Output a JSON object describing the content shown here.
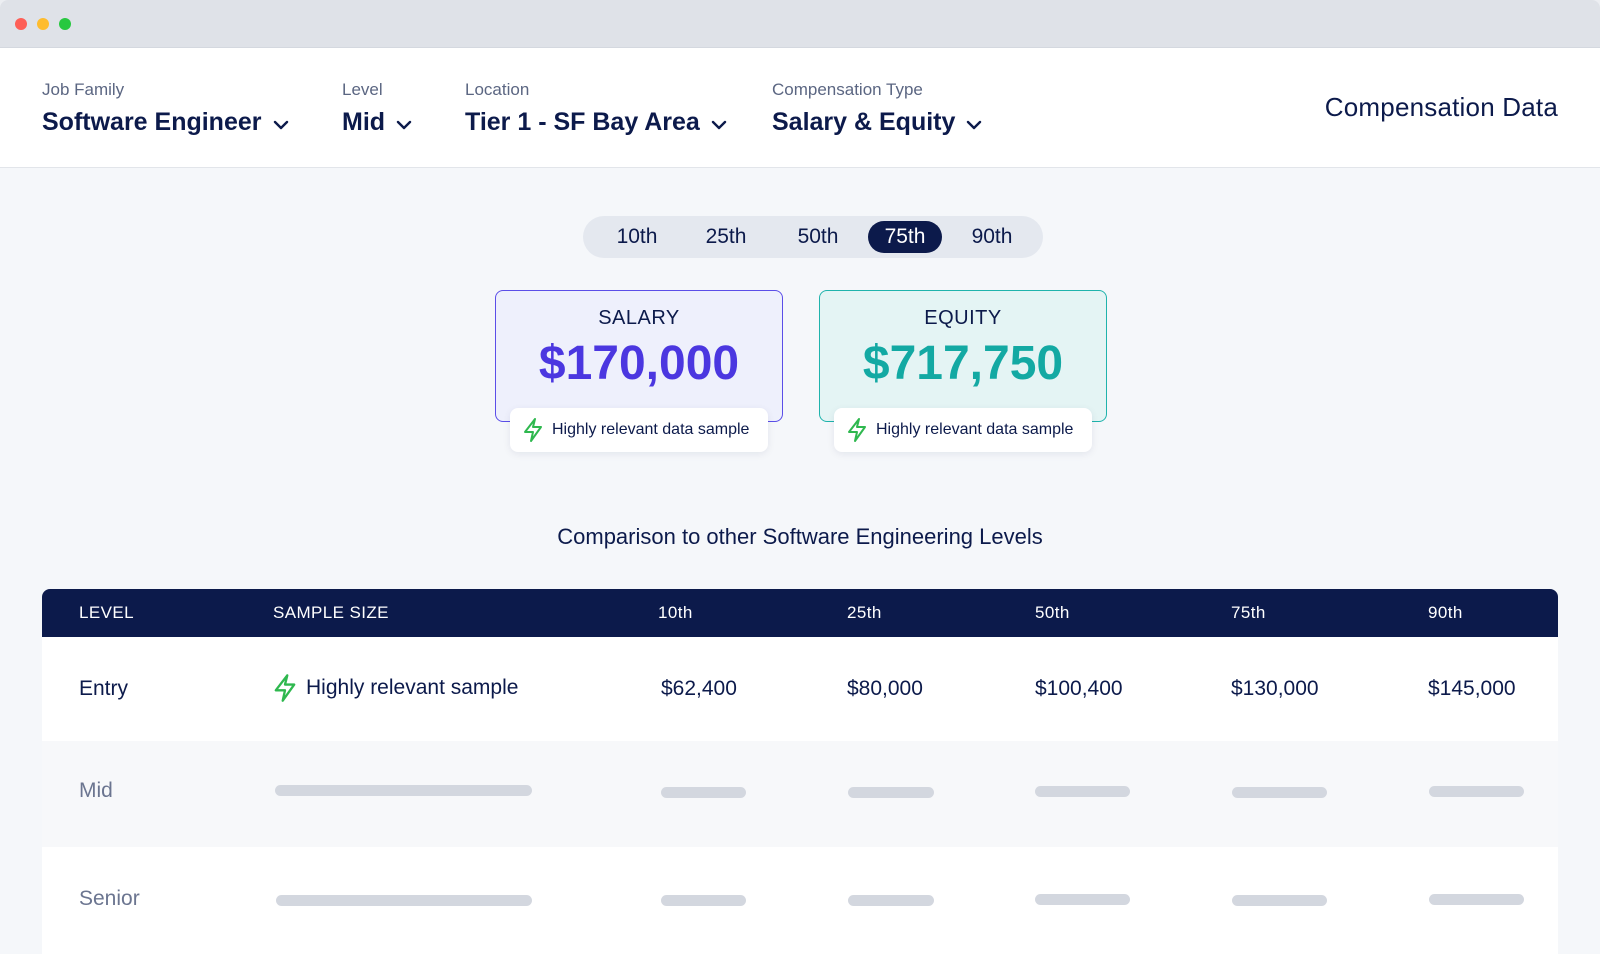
{
  "filters": [
    {
      "label": "Job Family",
      "value": "Software Engineer"
    },
    {
      "label": "Level",
      "value": "Mid"
    },
    {
      "label": "Location",
      "value": "Tier 1 - SF Bay Area"
    },
    {
      "label": "Compensation Type",
      "value": "Salary & Equity"
    }
  ],
  "app_title": "Compensation Data",
  "percentiles": {
    "options": [
      "10th",
      "25th",
      "50th",
      "75th",
      "90th"
    ],
    "selected": "75th"
  },
  "cards": {
    "salary": {
      "label": "SALARY",
      "value": "$170,000",
      "badge": "Highly relevant data sample",
      "accent": "#4b37e0"
    },
    "equity": {
      "label": "EQUITY",
      "value": "$717,750",
      "badge": "Highly relevant data sample",
      "accent": "#13a9a3"
    }
  },
  "comparison": {
    "title": "Comparison to other Software Engineering Levels",
    "columns": [
      "LEVEL",
      "SAMPLE SIZE",
      "10th",
      "25th",
      "50th",
      "75th",
      "90th"
    ],
    "rows": [
      {
        "level": "Entry",
        "sample": "Highly relevant sample",
        "values": [
          "$62,400",
          "$80,000",
          "$100,400",
          "$130,000",
          "$145,000"
        ]
      },
      {
        "level": "Mid",
        "loading": true
      },
      {
        "level": "Senior",
        "loading": true
      }
    ]
  },
  "colors": {
    "navy": "#0c1a4b",
    "salary_accent": "#4b37e0",
    "equity_accent": "#13a9a3",
    "bolt": "#2fb84f"
  },
  "icons": {
    "dropdown": "chevron-down-icon",
    "relevance": "lightning-bolt-icon"
  }
}
